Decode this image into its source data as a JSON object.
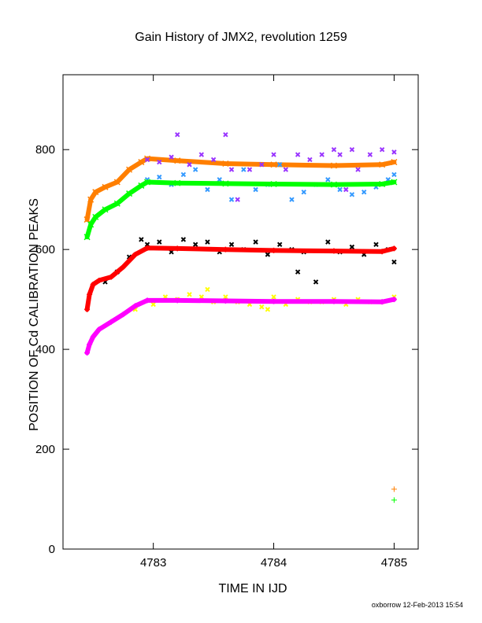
{
  "chart_data": {
    "type": "scatter",
    "title": "Gain History of JMX2, revolution 1259",
    "xlabel": "TIME IN IJD",
    "ylabel": "POSITION OF Cd CALIBRATION PEAKS",
    "xlim": [
      4782.25,
      4785.2
    ],
    "ylim": [
      0,
      950
    ],
    "x_ticks": [
      4783,
      4784,
      4785
    ],
    "y_ticks": [
      0,
      200,
      400,
      600,
      800
    ],
    "grid": false,
    "footer": "oxborrow 12-Feb-2013 15:54",
    "series": [
      {
        "color": "#ff7f00",
        "marker": "x",
        "style": "fit",
        "x": [
          4782.45,
          4782.48,
          4782.52,
          4782.6,
          4782.7,
          4782.8,
          4782.9,
          4782.95,
          4783.2,
          4783.6,
          4784.0,
          4784.5,
          4784.9,
          4785.0
        ],
        "y": [
          660,
          700,
          715,
          725,
          735,
          760,
          775,
          782,
          778,
          772,
          770,
          768,
          770,
          775
        ]
      },
      {
        "color": "#9933ff",
        "marker": "x",
        "style": "scatter",
        "x": [
          4782.95,
          4783.05,
          4783.15,
          4783.2,
          4783.3,
          4783.4,
          4783.5,
          4783.6,
          4783.65,
          4783.7,
          4783.8,
          4783.9,
          4784.0,
          4784.1,
          4784.2,
          4784.3,
          4784.4,
          4784.5,
          4784.55,
          4784.6,
          4784.65,
          4784.7,
          4784.8,
          4784.9,
          4785.0
        ],
        "y": [
          780,
          775,
          785,
          830,
          770,
          790,
          780,
          830,
          760,
          700,
          760,
          770,
          790,
          760,
          790,
          780,
          790,
          800,
          790,
          720,
          800,
          760,
          790,
          800,
          795
        ]
      },
      {
        "color": "#3399ff",
        "marker": "x",
        "style": "scatter",
        "x": [
          4782.95,
          4783.05,
          4783.15,
          4783.25,
          4783.35,
          4783.45,
          4783.55,
          4783.65,
          4783.75,
          4783.85,
          4783.95,
          4784.05,
          4784.15,
          4784.25,
          4784.35,
          4784.45,
          4784.55,
          4784.65,
          4784.75,
          4784.85,
          4784.95,
          4785.0
        ],
        "y": [
          740,
          745,
          730,
          750,
          760,
          720,
          740,
          700,
          760,
          720,
          730,
          770,
          700,
          715,
          730,
          740,
          720,
          710,
          715,
          725,
          740,
          750
        ]
      },
      {
        "color": "#00ff00",
        "marker": "x",
        "style": "fit",
        "x": [
          4782.45,
          4782.48,
          4782.52,
          4782.6,
          4782.7,
          4782.8,
          4782.9,
          4782.95,
          4783.2,
          4783.6,
          4784.0,
          4784.5,
          4784.9,
          4785.0
        ],
        "y": [
          625,
          650,
          665,
          680,
          692,
          712,
          728,
          735,
          733,
          732,
          731,
          730,
          731,
          735
        ]
      },
      {
        "color": "#000000",
        "marker": "x",
        "style": "scatter",
        "x": [
          4782.6,
          4782.7,
          4782.8,
          4782.9,
          4782.95,
          4783.05,
          4783.15,
          4783.25,
          4783.35,
          4783.45,
          4783.55,
          4783.65,
          4783.75,
          4783.85,
          4783.95,
          4784.05,
          4784.15,
          4784.2,
          4784.25,
          4784.35,
          4784.45,
          4784.55,
          4784.65,
          4784.75,
          4784.85,
          4784.95,
          4785.0
        ],
        "y": [
          535,
          555,
          585,
          620,
          610,
          615,
          595,
          620,
          610,
          615,
          595,
          610,
          600,
          615,
          590,
          610,
          600,
          555,
          595,
          535,
          615,
          595,
          605,
          590,
          610,
          600,
          575
        ]
      },
      {
        "color": "#ff0000",
        "marker": "+",
        "style": "fit",
        "x": [
          4782.45,
          4782.47,
          4782.5,
          4782.55,
          4782.65,
          4782.75,
          4782.85,
          4782.95,
          4783.2,
          4783.6,
          4784.0,
          4784.5,
          4784.9,
          4785.0
        ],
        "y": [
          480,
          510,
          530,
          538,
          545,
          565,
          590,
          603,
          602,
          600,
          598,
          597,
          596,
          602
        ]
      },
      {
        "color": "#ffff00",
        "marker": "x",
        "style": "scatter",
        "x": [
          4782.85,
          4783.0,
          4783.1,
          4783.2,
          4783.3,
          4783.4,
          4783.45,
          4783.5,
          4783.6,
          4783.7,
          4783.8,
          4783.9,
          4783.95,
          4784.0,
          4784.1,
          4784.2,
          4784.3,
          4784.4,
          4784.5,
          4784.6,
          4784.7,
          4784.8,
          4784.9,
          4785.0
        ],
        "y": [
          480,
          490,
          505,
          500,
          510,
          505,
          520,
          495,
          505,
          495,
          490,
          485,
          480,
          505,
          490,
          500,
          495,
          495,
          500,
          490,
          500,
          495,
          495,
          505
        ]
      },
      {
        "color": "#ff00ff",
        "marker": "+",
        "style": "fit",
        "x": [
          4782.45,
          4782.47,
          4782.5,
          4782.55,
          4782.65,
          4782.75,
          4782.85,
          4782.95,
          4783.2,
          4783.6,
          4784.0,
          4784.5,
          4784.9,
          4785.0
        ],
        "y": [
          393,
          410,
          425,
          440,
          455,
          470,
          487,
          498,
          498,
          497,
          496,
          496,
          495,
          500
        ]
      },
      {
        "color": "#ff7f00",
        "marker": "+",
        "style": "single",
        "x": [
          4785.0
        ],
        "y": [
          120
        ]
      },
      {
        "color": "#00ff00",
        "marker": "+",
        "style": "single",
        "x": [
          4785.0
        ],
        "y": [
          98
        ]
      }
    ]
  }
}
